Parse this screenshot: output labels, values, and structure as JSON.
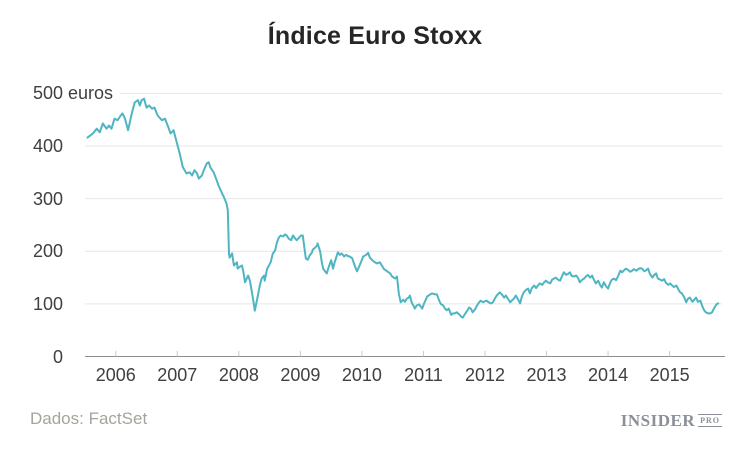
{
  "title": "Índice Euro Stoxx",
  "source": "Dados: FactSet",
  "logo": {
    "main": "INSIDER",
    "sub": "PRO"
  },
  "colors": {
    "line": "#4fb5c2",
    "grid": "#e6e6e6",
    "axis_line": "#8c8c8c",
    "tick": "#c9c9c9",
    "title_text": "#262626",
    "axis_text": "#404040",
    "source_text": "#a5a49c",
    "logo_text": "#8b8f97",
    "background": "#ffffff"
  },
  "chart_data": {
    "type": "line",
    "title": "Índice Euro Stoxx",
    "xlabel": "",
    "ylabel": "euros",
    "y_suffix": {
      "value": 500,
      "text": " euros"
    },
    "yticks": [
      0,
      100,
      200,
      300,
      400,
      500
    ],
    "xticks": [
      2006,
      2007,
      2008,
      2009,
      2010,
      2011,
      2012,
      2013,
      2014,
      2015
    ],
    "ylim": [
      0,
      500
    ],
    "xlim": [
      2005.5,
      2015.9
    ],
    "grid": true,
    "legend": false,
    "series": [
      {
        "name": "Euro Stoxx",
        "points": [
          [
            2005.54,
            416
          ],
          [
            2005.63,
            424
          ],
          [
            2005.69,
            433
          ],
          [
            2005.74,
            426
          ],
          [
            2005.79,
            443
          ],
          [
            2005.85,
            433
          ],
          [
            2005.89,
            439
          ],
          [
            2005.93,
            433
          ],
          [
            2005.98,
            452
          ],
          [
            2006.03,
            449
          ],
          [
            2006.08,
            458
          ],
          [
            2006.11,
            462
          ],
          [
            2006.15,
            452
          ],
          [
            2006.2,
            430
          ],
          [
            2006.26,
            462
          ],
          [
            2006.31,
            483
          ],
          [
            2006.36,
            487
          ],
          [
            2006.39,
            477
          ],
          [
            2006.42,
            487
          ],
          [
            2006.46,
            490
          ],
          [
            2006.5,
            473
          ],
          [
            2006.54,
            477
          ],
          [
            2006.59,
            471
          ],
          [
            2006.63,
            473
          ],
          [
            2006.68,
            458
          ],
          [
            2006.75,
            449
          ],
          [
            2006.8,
            452
          ],
          [
            2006.85,
            437
          ],
          [
            2006.89,
            424
          ],
          [
            2006.94,
            430
          ],
          [
            2006.99,
            407
          ],
          [
            2007.04,
            385
          ],
          [
            2007.09,
            360
          ],
          [
            2007.15,
            348
          ],
          [
            2007.2,
            350
          ],
          [
            2007.24,
            344
          ],
          [
            2007.28,
            354
          ],
          [
            2007.32,
            348
          ],
          [
            2007.35,
            338
          ],
          [
            2007.4,
            344
          ],
          [
            2007.43,
            354
          ],
          [
            2007.48,
            367
          ],
          [
            2007.51,
            369
          ],
          [
            2007.54,
            359
          ],
          [
            2007.59,
            350
          ],
          [
            2007.64,
            335
          ],
          [
            2007.67,
            325
          ],
          [
            2007.72,
            312
          ],
          [
            2007.76,
            302
          ],
          [
            2007.8,
            291
          ],
          [
            2007.82,
            278
          ],
          [
            2007.84,
            195
          ],
          [
            2007.85,
            188
          ],
          [
            2007.89,
            196
          ],
          [
            2007.92,
            173
          ],
          [
            2007.97,
            179
          ],
          [
            2007.98,
            167
          ],
          [
            2008.02,
            171
          ],
          [
            2008.05,
            173
          ],
          [
            2008.07,
            163
          ],
          [
            2008.1,
            141
          ],
          [
            2008.15,
            154
          ],
          [
            2008.18,
            144
          ],
          [
            2008.23,
            110
          ],
          [
            2008.26,
            87
          ],
          [
            2008.31,
            116
          ],
          [
            2008.34,
            135
          ],
          [
            2008.37,
            148
          ],
          [
            2008.41,
            154
          ],
          [
            2008.42,
            144
          ],
          [
            2008.46,
            167
          ],
          [
            2008.49,
            173
          ],
          [
            2008.52,
            180
          ],
          [
            2008.55,
            195
          ],
          [
            2008.59,
            202
          ],
          [
            2008.62,
            217
          ],
          [
            2008.65,
            226
          ],
          [
            2008.68,
            230
          ],
          [
            2008.72,
            228
          ],
          [
            2008.75,
            232
          ],
          [
            2008.78,
            230
          ],
          [
            2008.81,
            224
          ],
          [
            2008.85,
            221
          ],
          [
            2008.88,
            230
          ],
          [
            2008.91,
            225
          ],
          [
            2008.94,
            221
          ],
          [
            2008.98,
            226
          ],
          [
            2009.01,
            230
          ],
          [
            2009.04,
            230
          ],
          [
            2009.07,
            202
          ],
          [
            2009.09,
            186
          ],
          [
            2009.12,
            184
          ],
          [
            2009.15,
            192
          ],
          [
            2009.19,
            198
          ],
          [
            2009.2,
            203
          ],
          [
            2009.24,
            207
          ],
          [
            2009.27,
            211
          ],
          [
            2009.28,
            215
          ],
          [
            2009.32,
            200
          ],
          [
            2009.35,
            178
          ],
          [
            2009.37,
            167
          ],
          [
            2009.4,
            162
          ],
          [
            2009.43,
            158
          ],
          [
            2009.46,
            170
          ],
          [
            2009.5,
            183
          ],
          [
            2009.53,
            167
          ],
          [
            2009.56,
            180
          ],
          [
            2009.61,
            198
          ],
          [
            2009.64,
            193
          ],
          [
            2009.67,
            196
          ],
          [
            2009.71,
            190
          ],
          [
            2009.74,
            193
          ],
          [
            2009.77,
            191
          ],
          [
            2009.8,
            190
          ],
          [
            2009.84,
            187
          ],
          [
            2009.89,
            170
          ],
          [
            2009.92,
            162
          ],
          [
            2009.97,
            175
          ],
          [
            2010.02,
            190
          ],
          [
            2010.07,
            193
          ],
          [
            2010.1,
            197
          ],
          [
            2010.13,
            188
          ],
          [
            2010.16,
            184
          ],
          [
            2010.2,
            180
          ],
          [
            2010.24,
            177
          ],
          [
            2010.29,
            179
          ],
          [
            2010.33,
            172
          ],
          [
            2010.36,
            166
          ],
          [
            2010.41,
            162
          ],
          [
            2010.46,
            158
          ],
          [
            2010.49,
            152
          ],
          [
            2010.54,
            148
          ],
          [
            2010.57,
            152
          ],
          [
            2010.6,
            120
          ],
          [
            2010.63,
            103
          ],
          [
            2010.67,
            108
          ],
          [
            2010.7,
            104
          ],
          [
            2010.73,
            110
          ],
          [
            2010.76,
            112
          ],
          [
            2010.78,
            116
          ],
          [
            2010.81,
            102
          ],
          [
            2010.85,
            94
          ],
          [
            2010.86,
            91
          ],
          [
            2010.89,
            97
          ],
          [
            2010.93,
            99
          ],
          [
            2010.96,
            94
          ],
          [
            2010.98,
            91
          ],
          [
            2011.01,
            101
          ],
          [
            2011.06,
            114
          ],
          [
            2011.11,
            118
          ],
          [
            2011.14,
            120
          ],
          [
            2011.19,
            118
          ],
          [
            2011.22,
            118
          ],
          [
            2011.25,
            108
          ],
          [
            2011.28,
            100
          ],
          [
            2011.32,
            97
          ],
          [
            2011.35,
            91
          ],
          [
            2011.38,
            88
          ],
          [
            2011.41,
            91
          ],
          [
            2011.45,
            79
          ],
          [
            2011.48,
            82
          ],
          [
            2011.51,
            82
          ],
          [
            2011.54,
            84
          ],
          [
            2011.58,
            80
          ],
          [
            2011.61,
            76
          ],
          [
            2011.64,
            74
          ],
          [
            2011.67,
            80
          ],
          [
            2011.71,
            87
          ],
          [
            2011.74,
            93
          ],
          [
            2011.77,
            91
          ],
          [
            2011.8,
            84
          ],
          [
            2011.84,
            90
          ],
          [
            2011.87,
            97
          ],
          [
            2011.9,
            102
          ],
          [
            2011.93,
            106
          ],
          [
            2011.97,
            103
          ],
          [
            2012.0,
            105
          ],
          [
            2012.03,
            106
          ],
          [
            2012.06,
            103
          ],
          [
            2012.1,
            101
          ],
          [
            2012.13,
            103
          ],
          [
            2012.16,
            110
          ],
          [
            2012.19,
            116
          ],
          [
            2012.24,
            122
          ],
          [
            2012.28,
            117
          ],
          [
            2012.31,
            112
          ],
          [
            2012.34,
            116
          ],
          [
            2012.37,
            110
          ],
          [
            2012.41,
            103
          ],
          [
            2012.44,
            107
          ],
          [
            2012.47,
            110
          ],
          [
            2012.5,
            116
          ],
          [
            2012.54,
            108
          ],
          [
            2012.57,
            101
          ],
          [
            2012.6,
            114
          ],
          [
            2012.63,
            122
          ],
          [
            2012.67,
            127
          ],
          [
            2012.7,
            129
          ],
          [
            2012.73,
            120
          ],
          [
            2012.76,
            130
          ],
          [
            2012.8,
            135
          ],
          [
            2012.83,
            130
          ],
          [
            2012.86,
            135
          ],
          [
            2012.89,
            139
          ],
          [
            2012.93,
            136
          ],
          [
            2012.96,
            141
          ],
          [
            2012.99,
            144
          ],
          [
            2013.02,
            141
          ],
          [
            2013.06,
            139
          ],
          [
            2013.09,
            146
          ],
          [
            2013.12,
            148
          ],
          [
            2013.15,
            150
          ],
          [
            2013.19,
            146
          ],
          [
            2013.22,
            144
          ],
          [
            2013.25,
            152
          ],
          [
            2013.28,
            160
          ],
          [
            2013.32,
            155
          ],
          [
            2013.35,
            157
          ],
          [
            2013.38,
            160
          ],
          [
            2013.41,
            153
          ],
          [
            2013.45,
            152
          ],
          [
            2013.48,
            154
          ],
          [
            2013.51,
            150
          ],
          [
            2013.54,
            141
          ],
          [
            2013.58,
            146
          ],
          [
            2013.61,
            148
          ],
          [
            2013.64,
            152
          ],
          [
            2013.67,
            155
          ],
          [
            2013.71,
            150
          ],
          [
            2013.74,
            154
          ],
          [
            2013.77,
            146
          ],
          [
            2013.8,
            139
          ],
          [
            2013.84,
            144
          ],
          [
            2013.87,
            136
          ],
          [
            2013.9,
            131
          ],
          [
            2013.93,
            141
          ],
          [
            2013.97,
            133
          ],
          [
            2014.0,
            129
          ],
          [
            2014.03,
            139
          ],
          [
            2014.06,
            146
          ],
          [
            2014.1,
            148
          ],
          [
            2014.13,
            145
          ],
          [
            2014.16,
            152
          ],
          [
            2014.2,
            163
          ],
          [
            2014.23,
            160
          ],
          [
            2014.26,
            164
          ],
          [
            2014.29,
            167
          ],
          [
            2014.33,
            164
          ],
          [
            2014.36,
            161
          ],
          [
            2014.39,
            163
          ],
          [
            2014.42,
            166
          ],
          [
            2014.46,
            163
          ],
          [
            2014.49,
            166
          ],
          [
            2014.52,
            168
          ],
          [
            2014.55,
            167
          ],
          [
            2014.59,
            162
          ],
          [
            2014.62,
            164
          ],
          [
            2014.65,
            167
          ],
          [
            2014.68,
            157
          ],
          [
            2014.72,
            150
          ],
          [
            2014.75,
            155
          ],
          [
            2014.78,
            158
          ],
          [
            2014.81,
            148
          ],
          [
            2014.85,
            146
          ],
          [
            2014.88,
            144
          ],
          [
            2014.91,
            147
          ],
          [
            2014.94,
            140
          ],
          [
            2014.98,
            136
          ],
          [
            2015.01,
            139
          ],
          [
            2015.04,
            135
          ],
          [
            2015.07,
            132
          ],
          [
            2015.11,
            135
          ],
          [
            2015.14,
            128
          ],
          [
            2015.17,
            122
          ],
          [
            2015.2,
            120
          ],
          [
            2015.24,
            112
          ],
          [
            2015.27,
            103
          ],
          [
            2015.3,
            110
          ],
          [
            2015.33,
            112
          ],
          [
            2015.37,
            104
          ],
          [
            2015.4,
            108
          ],
          [
            2015.43,
            112
          ],
          [
            2015.46,
            104
          ],
          [
            2015.5,
            106
          ],
          [
            2015.53,
            96
          ],
          [
            2015.56,
            88
          ],
          [
            2015.59,
            84
          ],
          [
            2015.63,
            82
          ],
          [
            2015.66,
            82
          ],
          [
            2015.69,
            84
          ],
          [
            2015.72,
            91
          ],
          [
            2015.76,
            99
          ],
          [
            2015.79,
            101
          ]
        ]
      }
    ]
  }
}
